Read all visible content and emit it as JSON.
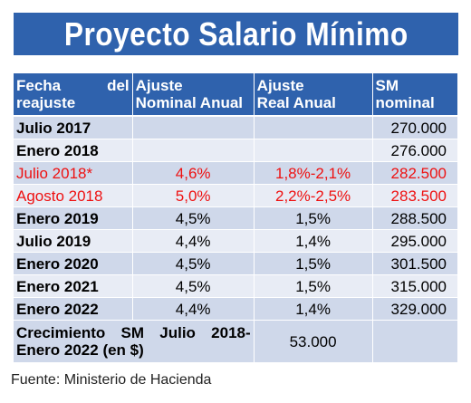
{
  "title": "Proyecto Salario Mínimo",
  "table": {
    "headers": {
      "fecha_word1": "Fecha",
      "fecha_word2": "del",
      "fecha_line2": "reajuste",
      "ajuste_nominal_1": "Ajuste",
      "ajuste_nominal_2": "Nominal Anual",
      "ajuste_real_1": "Ajuste",
      "ajuste_real_2": "Real Anual",
      "sm_1": "SM",
      "sm_2": "nominal"
    },
    "rows": [
      {
        "fecha": "Julio 2017",
        "nominal": "",
        "real": "",
        "sm": "270.000"
      },
      {
        "fecha": "Enero 2018",
        "nominal": "",
        "real": "",
        "sm": "276.000"
      },
      {
        "fecha": "Julio 2018*",
        "nominal": "4,6%",
        "real": "1,8%-2,1%",
        "sm": "282.500"
      },
      {
        "fecha": "Agosto 2018",
        "nominal": "5,0%",
        "real": "2,2%-2,5%",
        "sm": "283.500"
      },
      {
        "fecha": "Enero 2019",
        "nominal": "4,5%",
        "real": "1,5%",
        "sm": "288.500"
      },
      {
        "fecha": "Julio 2019",
        "nominal": "4,4%",
        "real": "1,4%",
        "sm": "295.000"
      },
      {
        "fecha": "Enero 2020",
        "nominal": "4,5%",
        "real": "1,5%",
        "sm": "301.500"
      },
      {
        "fecha": "Enero 2021",
        "nominal": "4,5%",
        "real": "1,5%",
        "sm": "315.000"
      },
      {
        "fecha": "Enero 2022",
        "nominal": "4,4%",
        "real": "1,4%",
        "sm": "329.000"
      }
    ],
    "footer": {
      "label": "Crecimiento SM Julio 2018-Enero 2022 (en $)",
      "value": "53.000"
    }
  },
  "source": "Fuente: Ministerio de Hacienda",
  "colors": {
    "banner": "#2f62ad",
    "highlight_text": "#ee1111"
  }
}
